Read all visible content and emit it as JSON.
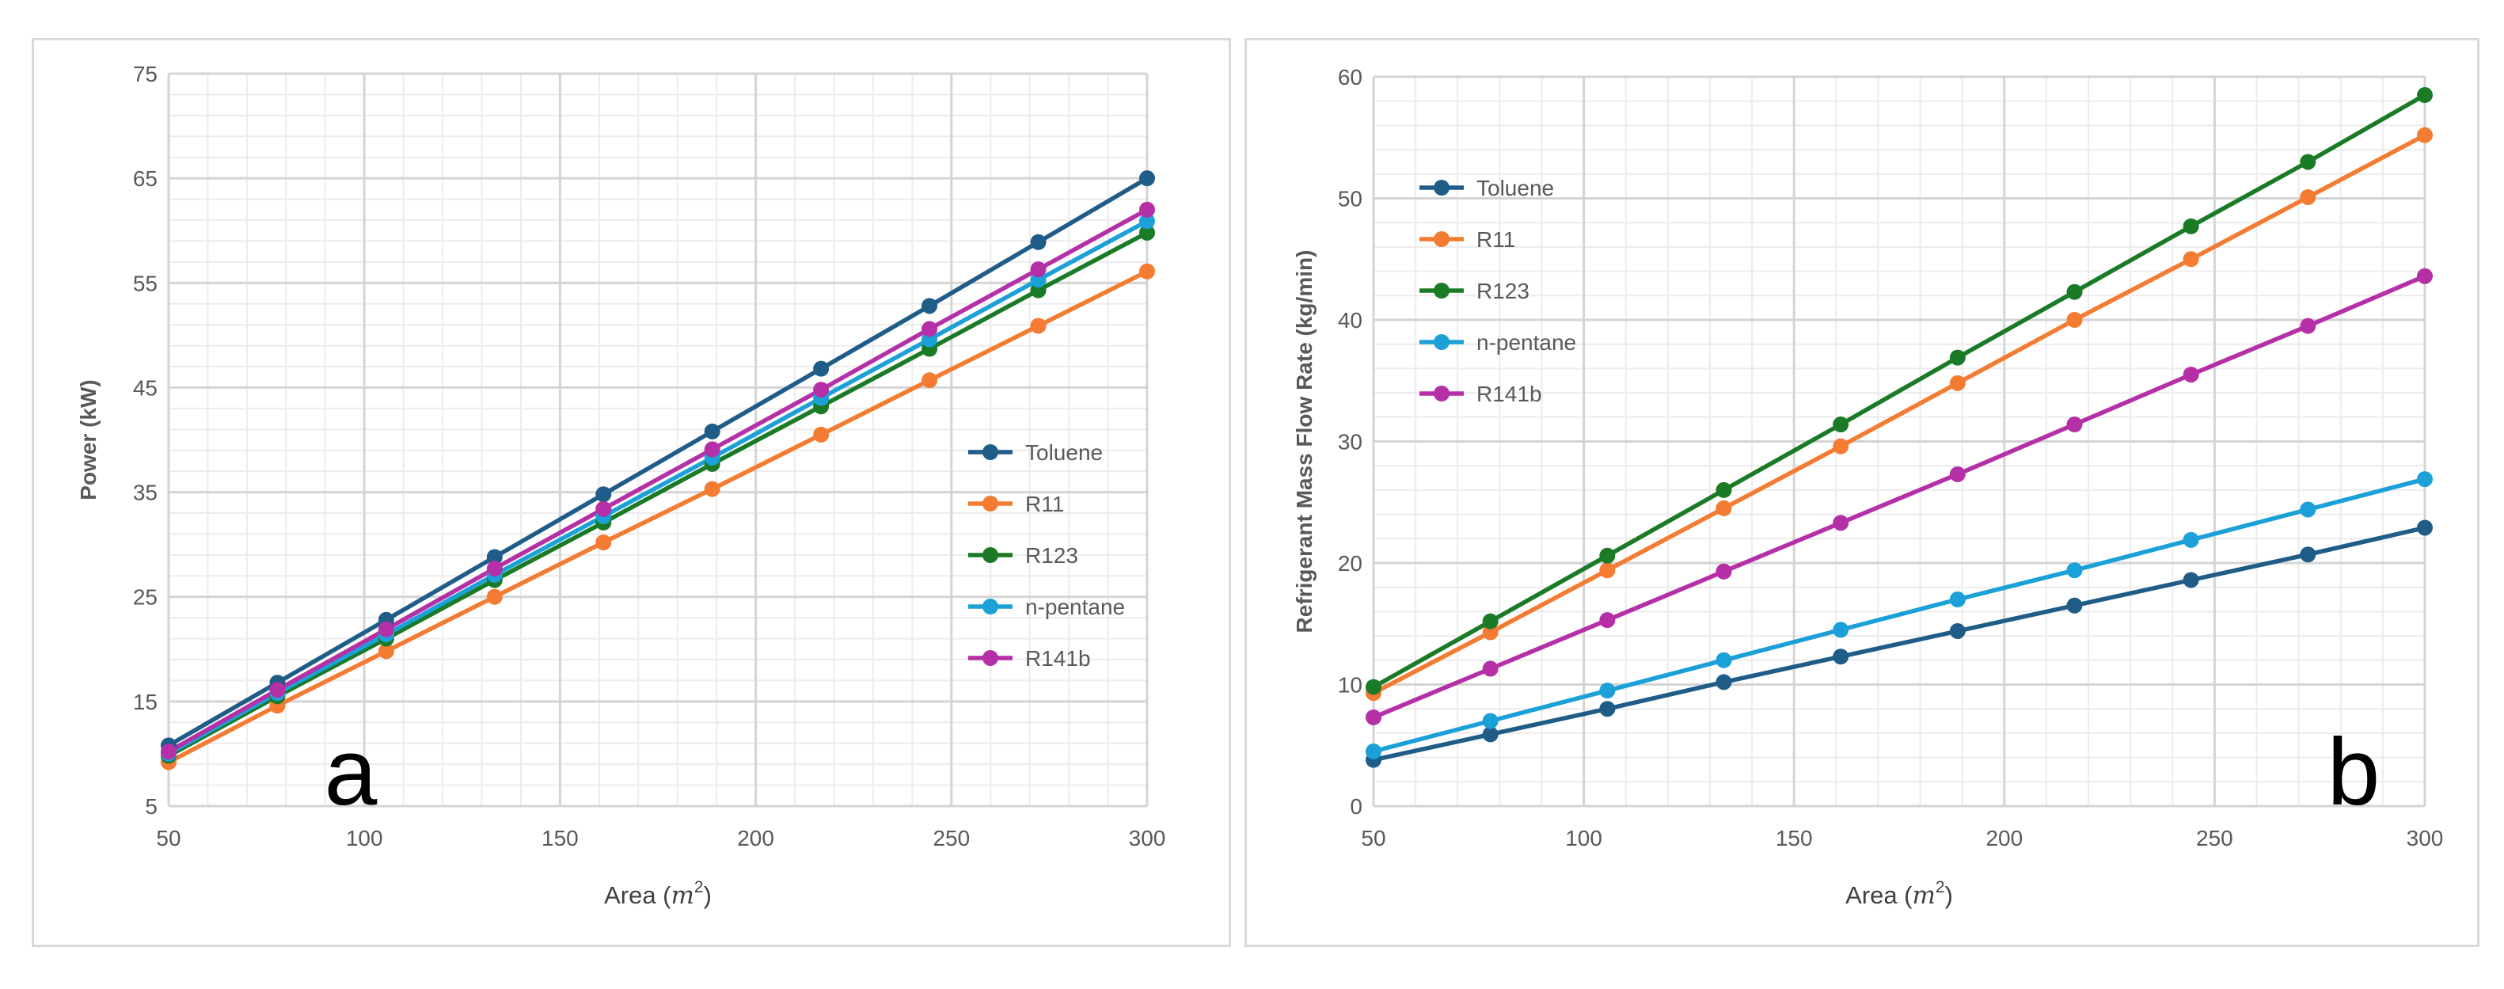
{
  "chart_data": [
    {
      "id": "a",
      "type": "line",
      "panel_label": "a",
      "xlabel": "Area (m²)",
      "xlabel_prefix": "Area (",
      "xlabel_var": "m",
      "xlabel_exp": "2",
      "xlabel_suffix": ")",
      "ylabel": "Power (kW)",
      "xlim": [
        50,
        300
      ],
      "ylim": [
        5,
        75
      ],
      "x_ticks": [
        50,
        100,
        150,
        200,
        250,
        300
      ],
      "y_ticks": [
        5,
        15,
        25,
        35,
        45,
        55,
        65,
        75
      ],
      "grid": true,
      "legend_position": "right, inside plot, below middle",
      "x": [
        50,
        77.8,
        105.6,
        133.3,
        161.1,
        188.9,
        216.7,
        244.4,
        272.2,
        300
      ],
      "series": [
        {
          "name": "Toluene",
          "color": "#1f5c87",
          "values": [
            10.8,
            16.8,
            22.8,
            28.8,
            34.8,
            40.8,
            46.8,
            52.8,
            58.9,
            65.0
          ]
        },
        {
          "name": "R11",
          "color": "#f47b32",
          "values": [
            9.2,
            14.6,
            19.8,
            25.0,
            30.2,
            35.3,
            40.5,
            45.7,
            50.9,
            56.1
          ]
        },
        {
          "name": "R123",
          "color": "#1a7a26",
          "values": [
            9.8,
            15.5,
            21.0,
            26.6,
            32.1,
            37.7,
            43.2,
            48.7,
            54.3,
            59.8
          ]
        },
        {
          "name": "n-pentane",
          "color": "#1ba0d8",
          "values": [
            10.0,
            15.8,
            21.4,
            27.1,
            32.7,
            38.3,
            44.0,
            49.6,
            55.3,
            60.9
          ]
        },
        {
          "name": "R141b",
          "color": "#b530a6",
          "values": [
            10.2,
            16.1,
            21.9,
            27.7,
            33.4,
            39.1,
            44.8,
            50.6,
            56.3,
            62.0
          ]
        }
      ]
    },
    {
      "id": "b",
      "type": "line",
      "panel_label": "b",
      "xlabel": "Area (m²)",
      "xlabel_prefix": "Area (",
      "xlabel_var": "m",
      "xlabel_exp": "2",
      "xlabel_suffix": ")",
      "ylabel": "Refrigerant Mass Flow Rate (kg/min)",
      "xlim": [
        50,
        300
      ],
      "ylim": [
        0,
        60
      ],
      "x_ticks": [
        50,
        100,
        150,
        200,
        250,
        300
      ],
      "y_ticks": [
        0,
        10,
        20,
        30,
        40,
        50,
        60
      ],
      "grid": true,
      "legend_position": "top-left, inside plot",
      "x": [
        50,
        77.8,
        105.6,
        133.3,
        161.1,
        188.9,
        216.7,
        244.4,
        272.2,
        300
      ],
      "series": [
        {
          "name": "Toluene",
          "color": "#1f5c87",
          "values": [
            3.8,
            5.9,
            8.0,
            10.2,
            12.3,
            14.4,
            16.5,
            18.6,
            20.7,
            22.9
          ]
        },
        {
          "name": "R11",
          "color": "#f47b32",
          "values": [
            9.3,
            14.3,
            19.4,
            24.5,
            29.6,
            34.8,
            40.0,
            45.0,
            50.1,
            55.2
          ]
        },
        {
          "name": "R123",
          "color": "#1a7a26",
          "values": [
            9.8,
            15.2,
            20.6,
            26.0,
            31.4,
            36.9,
            42.3,
            47.7,
            53.0,
            58.5
          ]
        },
        {
          "name": "n-pentane",
          "color": "#1ba0d8",
          "values": [
            4.5,
            7.0,
            9.5,
            12.0,
            14.5,
            17.0,
            19.4,
            21.9,
            24.4,
            26.9
          ]
        },
        {
          "name": "R141b",
          "color": "#b530a6",
          "values": [
            7.3,
            11.3,
            15.3,
            19.3,
            23.3,
            27.3,
            31.4,
            35.5,
            39.5,
            43.6
          ]
        }
      ]
    }
  ]
}
